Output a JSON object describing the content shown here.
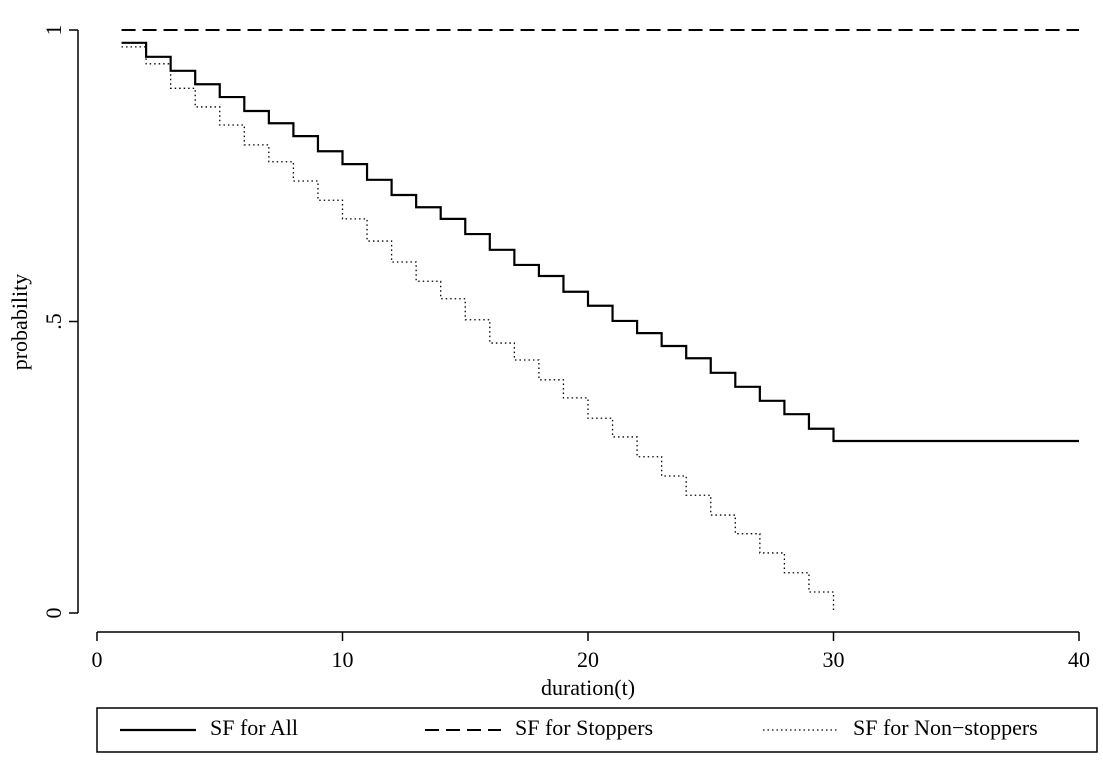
{
  "chart_data": {
    "type": "step",
    "x_label": "duration(t)",
    "y_label": "probability",
    "xlim": [
      0,
      40
    ],
    "ylim": [
      0,
      1
    ],
    "xticks": [
      0,
      10,
      20,
      30,
      40
    ],
    "yticks": [
      0,
      {
        "value": 0.5,
        "label": ".5"
      },
      1
    ],
    "legend": "bottom",
    "series": [
      {
        "name": "SF for All",
        "color": "#000000",
        "style": "solid",
        "x": [
          1,
          2,
          3,
          4,
          5,
          6,
          7,
          8,
          9,
          10,
          11,
          12,
          13,
          14,
          15,
          16,
          17,
          18,
          19,
          20,
          21,
          22,
          23,
          24,
          25,
          26,
          27,
          28,
          29,
          30,
          40
        ],
        "values": [
          0.978,
          0.954,
          0.93,
          0.907,
          0.885,
          0.861,
          0.84,
          0.818,
          0.792,
          0.77,
          0.743,
          0.717,
          0.696,
          0.676,
          0.65,
          0.623,
          0.597,
          0.578,
          0.551,
          0.527,
          0.501,
          0.48,
          0.458,
          0.437,
          0.412,
          0.388,
          0.364,
          0.341,
          0.316,
          0.295,
          0.295
        ]
      },
      {
        "name": "SF for Stoppers",
        "color": "#000000",
        "style": "dashed",
        "x": [
          1,
          40
        ],
        "values": [
          1,
          1
        ]
      },
      {
        "name": "SF for Non−stoppers",
        "color": "#000000",
        "style": "dotted",
        "x": [
          1,
          2,
          3,
          4,
          5,
          6,
          7,
          8,
          9,
          10,
          11,
          12,
          13,
          14,
          15,
          16,
          17,
          18,
          19,
          20,
          21,
          22,
          23,
          24,
          25,
          26,
          27,
          28,
          29,
          30
        ],
        "values": [
          0.971,
          0.942,
          0.9,
          0.868,
          0.837,
          0.803,
          0.774,
          0.741,
          0.708,
          0.676,
          0.638,
          0.602,
          0.569,
          0.539,
          0.503,
          0.463,
          0.434,
          0.4,
          0.369,
          0.334,
          0.302,
          0.268,
          0.235,
          0.202,
          0.168,
          0.136,
          0.103,
          0.069,
          0.036,
          0
        ]
      }
    ]
  }
}
